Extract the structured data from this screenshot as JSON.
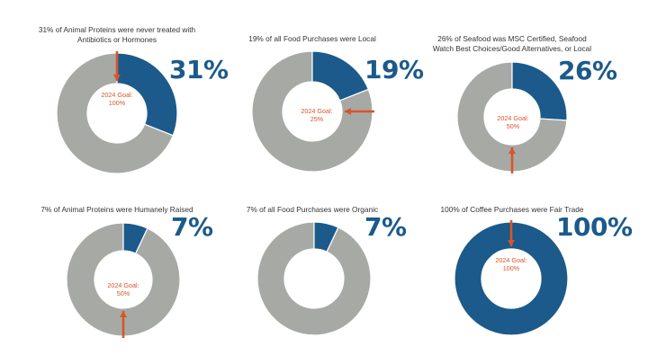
{
  "colors": {
    "achieved": "#1b5a8a",
    "remaining": "#a7a9a4",
    "goal": "#d8552b"
  },
  "chart_data": [
    {
      "type": "pie",
      "title": "31% of Animal Proteins were never treated with\nAntibiotics or Hormones",
      "value_percent": 31,
      "value_label": "31%",
      "goal_percent": 100,
      "goal_label": "2024 Goal:\n100%"
    },
    {
      "type": "pie",
      "title": "19% of all Food Purchases were Local",
      "value_percent": 19,
      "value_label": "19%",
      "goal_percent": 25,
      "goal_label": "2024 Goal:\n25%"
    },
    {
      "type": "pie",
      "title": "26% of Seafood was MSC Certified, Seafood\nWatch Best Choices/Good Alternatives, or Local",
      "value_percent": 26,
      "value_label": "26%",
      "goal_percent": 50,
      "goal_label": "2024 Goal:\n50%"
    },
    {
      "type": "pie",
      "title": "7% of Animal Proteins were Humanely Raised",
      "value_percent": 7,
      "value_label": "7%",
      "goal_percent": 50,
      "goal_label": "2024 Goal:\n50%"
    },
    {
      "type": "pie",
      "title": "7% of all Food Purchases were Organic",
      "value_percent": 7,
      "value_label": "7%",
      "goal_percent": null,
      "goal_label": ""
    },
    {
      "type": "pie",
      "title": "100% of Coffee Purchases were Fair Trade",
      "value_percent": 100,
      "value_label": "100%",
      "goal_percent": 100,
      "goal_label": "2024 Goal:\n100%"
    }
  ]
}
